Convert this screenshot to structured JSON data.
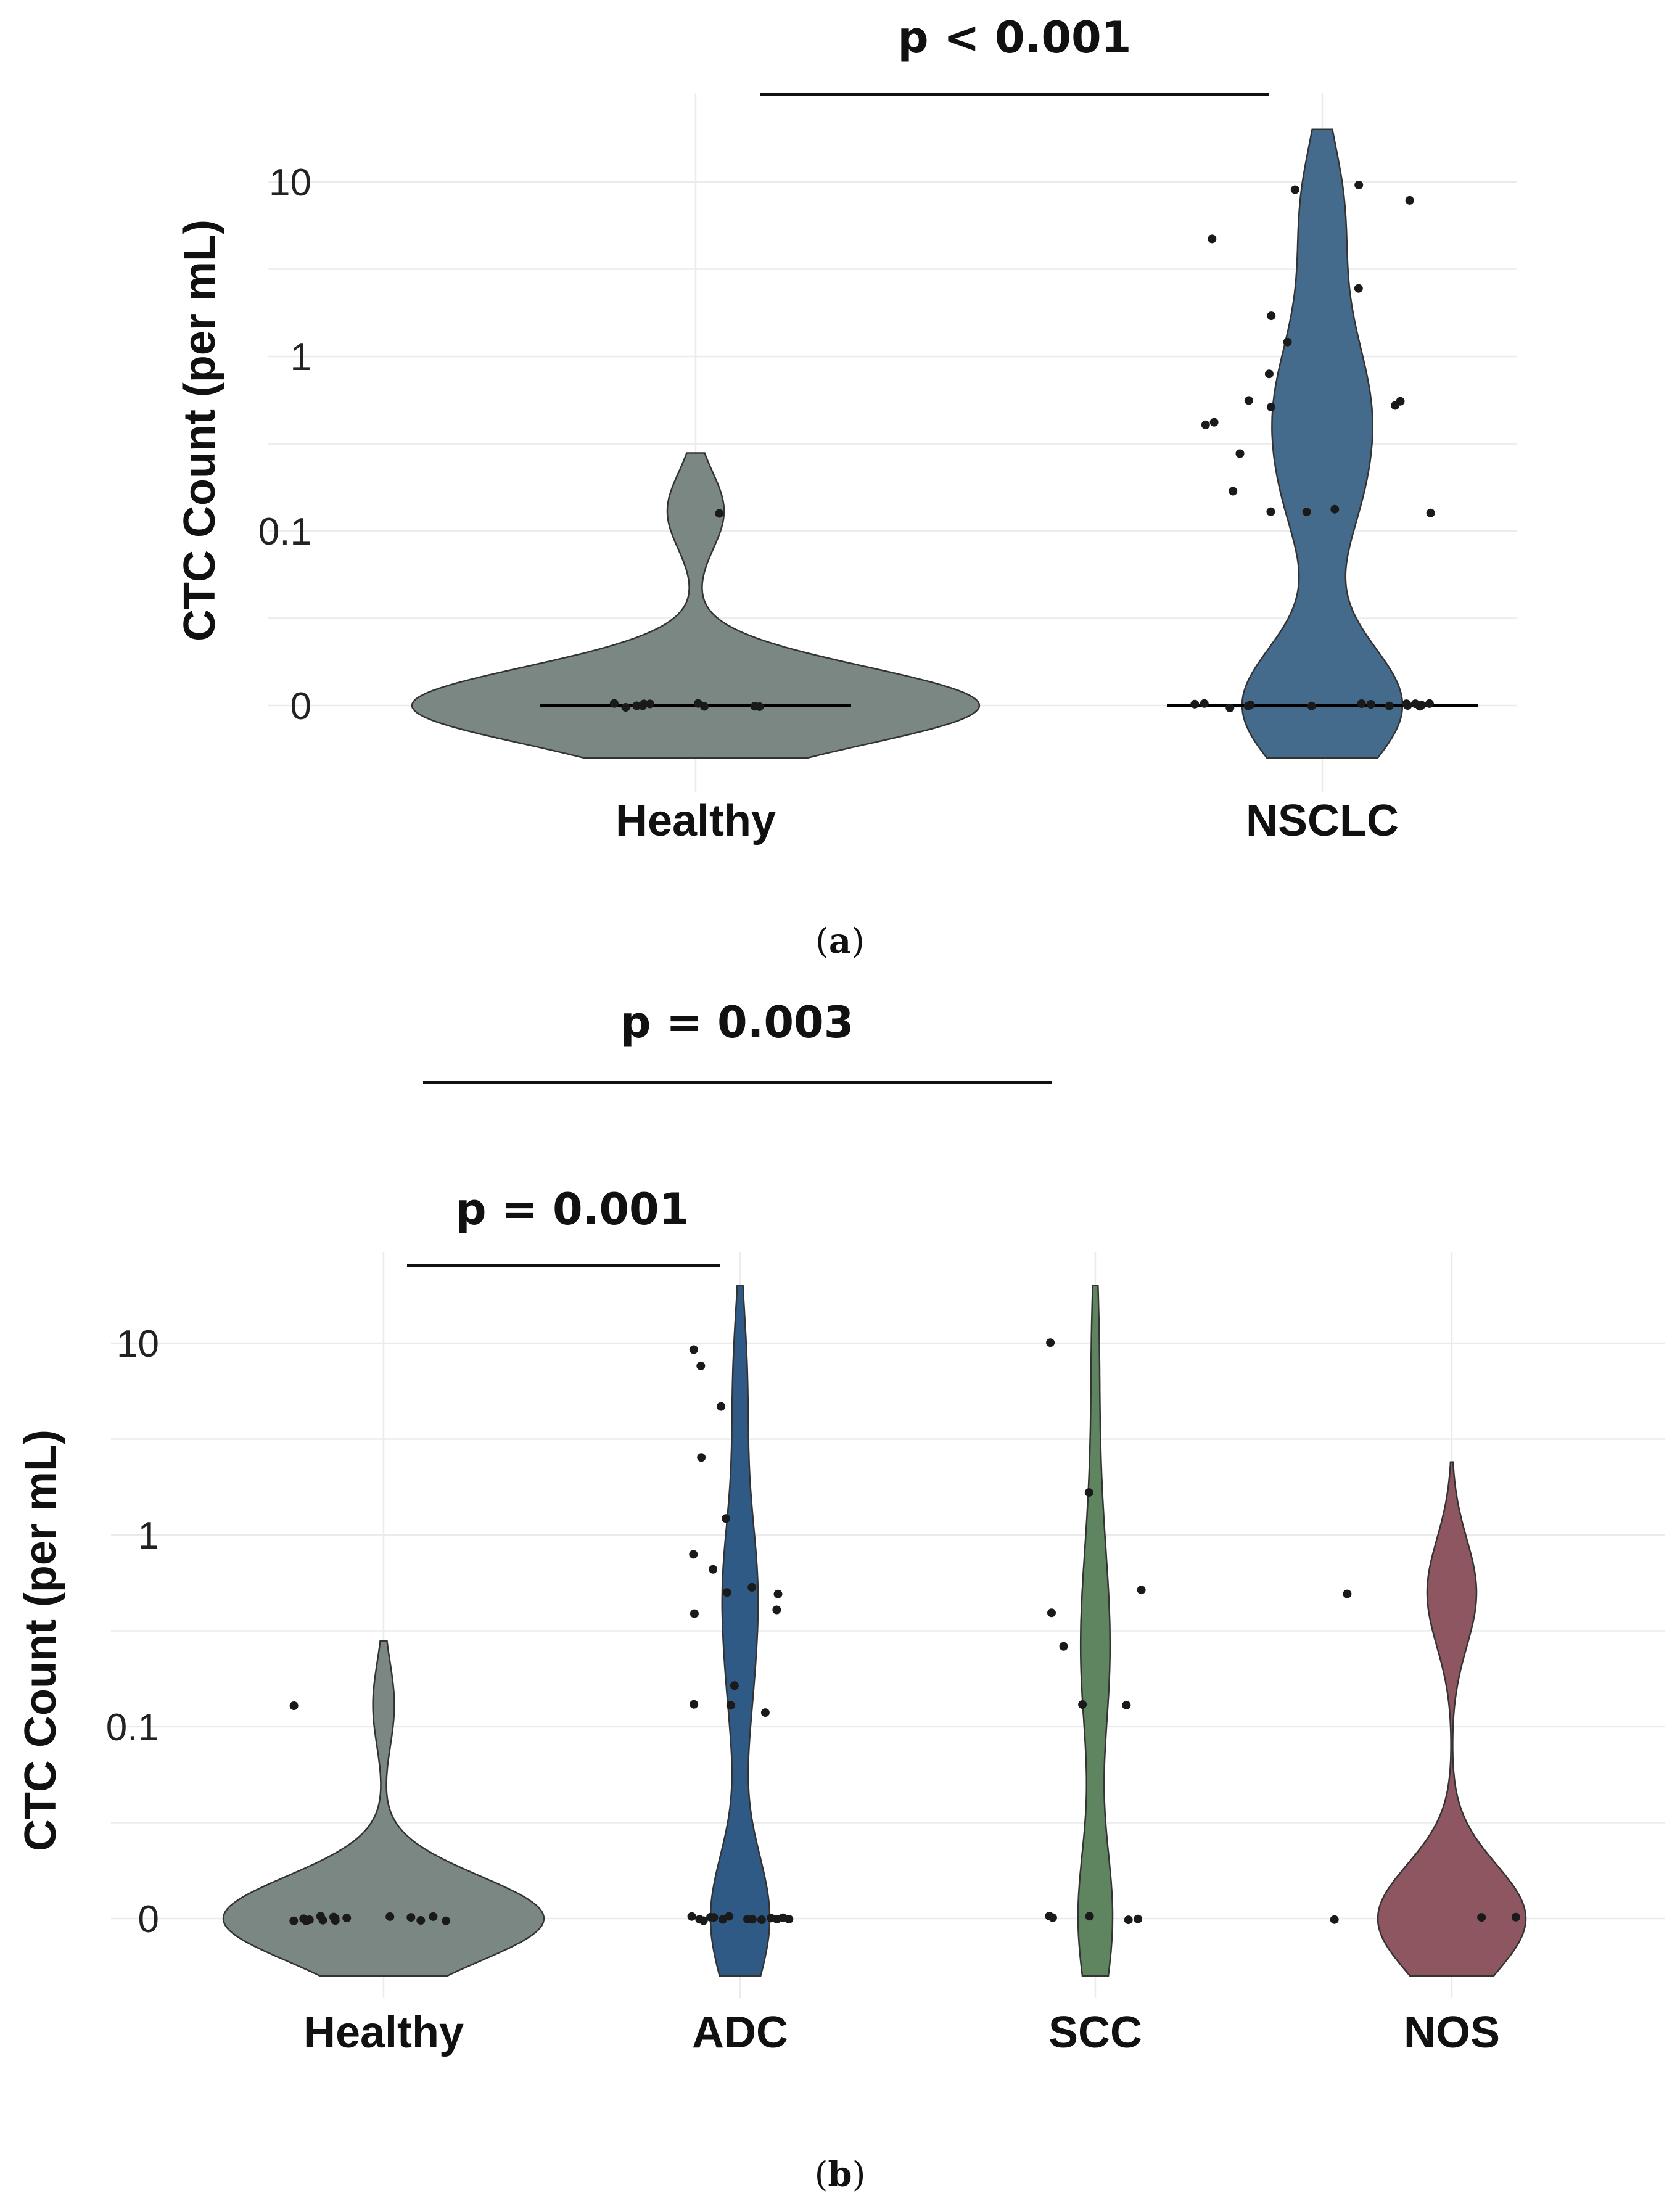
{
  "chart_data": [
    {
      "type": "violin",
      "panel_label": "a",
      "ylabel": "CTC Count (per mL)",
      "yscale": "pseudo-log",
      "yticks": [
        "0",
        "0.1",
        "1",
        "10"
      ],
      "categories": [
        "Healthy",
        "NSCLC"
      ],
      "colors": [
        "#7b8783",
        "#456b8c"
      ],
      "comparisons": [
        {
          "from": "Healthy",
          "to": "NSCLC",
          "label": "p < 0.001"
        }
      ],
      "series": [
        {
          "name": "Healthy",
          "median": 0,
          "max": 0.28,
          "values": [
            0.13,
            0,
            0,
            0,
            0,
            0,
            0,
            0,
            0,
            0,
            0
          ]
        },
        {
          "name": "NSCLC",
          "median": 0,
          "max": 20,
          "values": [
            9.5,
            9.0,
            7.7,
            4.8,
            2.5,
            1.7,
            1.2,
            0.82,
            0.55,
            0.53,
            0.52,
            0.55,
            0.4,
            0.42,
            0.27,
            0.17,
            0.13,
            0.13,
            0.13,
            0.13,
            0,
            0,
            0,
            0,
            0,
            0,
            0,
            0,
            0,
            0,
            0,
            0,
            0,
            0,
            0,
            0
          ]
        }
      ]
    },
    {
      "type": "violin",
      "panel_label": "b",
      "ylabel": "CTC Count (per mL)",
      "yscale": "pseudo-log",
      "yticks": [
        "0",
        "0.1",
        "1",
        "10"
      ],
      "categories": [
        "Healthy",
        "ADC",
        "SCC",
        "NOS"
      ],
      "colors": [
        "#7b8783",
        "#2f5a86",
        "#5f8460",
        "#8e5660"
      ],
      "comparisons": [
        {
          "from": "Healthy",
          "to": "ADC",
          "label": "p = 0.001"
        },
        {
          "from": "Healthy",
          "to": "SCC",
          "label": "p = 0.003"
        }
      ],
      "series": [
        {
          "name": "Healthy",
          "median": 0,
          "max": 0.28,
          "values": [
            0.13,
            0,
            0,
            0,
            0,
            0,
            0,
            0,
            0,
            0,
            0,
            0,
            0,
            0,
            0,
            0
          ]
        },
        {
          "name": "ADC",
          "median": 0,
          "max": 20,
          "values": [
            9.0,
            7.6,
            4.8,
            2.6,
            1.2,
            0.78,
            0.65,
            0.52,
            0.5,
            0.5,
            0.4,
            0.38,
            0.16,
            0.13,
            0.13,
            0.12,
            0,
            0,
            0,
            0,
            0,
            0,
            0,
            0,
            0,
            0,
            0,
            0,
            0,
            0
          ]
        },
        {
          "name": "SCC",
          "median": 0,
          "max": 20,
          "values": [
            10,
            1.7,
            0.52,
            0.4,
            0.26,
            0.13,
            0.13,
            0,
            0,
            0,
            0,
            0
          ]
        },
        {
          "name": "NOS",
          "median": 0,
          "max": 2.4,
          "values": [
            0.5,
            0,
            0,
            0
          ]
        }
      ]
    }
  ]
}
